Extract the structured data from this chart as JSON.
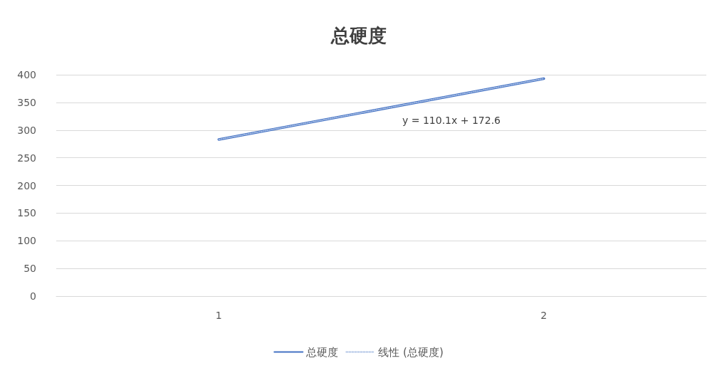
{
  "chart_data": {
    "type": "line",
    "title": "总硬度",
    "categories": [
      "1",
      "2"
    ],
    "series": [
      {
        "name": "总硬度",
        "color": "#4472c4",
        "values": [
          283,
          393
        ],
        "line_style": "solid"
      },
      {
        "name": "线性 (总硬度)",
        "color": "#b4c7e7",
        "values": [
          283,
          393
        ],
        "line_style": "dotted"
      }
    ],
    "ylim": [
      0,
      400
    ],
    "yticks": [
      0,
      50,
      100,
      150,
      200,
      250,
      300,
      350,
      400
    ],
    "grid": "y",
    "legend": "bottom",
    "marker": "none",
    "annotations": [
      "y = 110.1x + 172.6"
    ]
  }
}
